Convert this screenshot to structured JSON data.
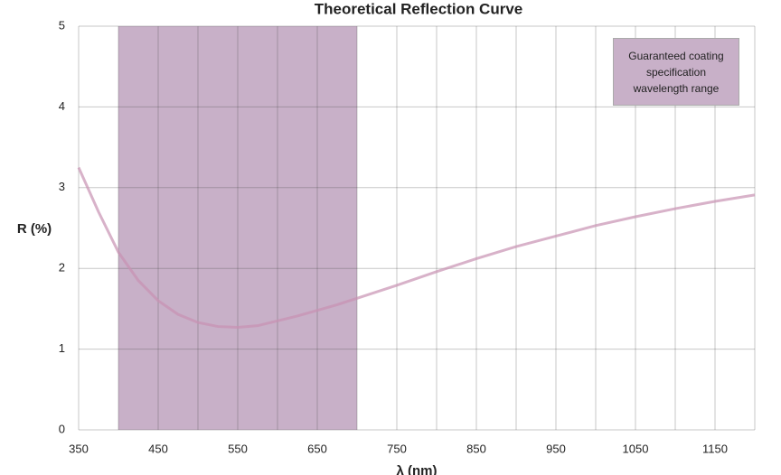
{
  "chart_data": {
    "type": "line",
    "title": "Theoretical Reflection Curve",
    "xlabel": "λ (nm)",
    "ylabel": "R (%)",
    "x": [
      350,
      375,
      400,
      425,
      450,
      475,
      500,
      525,
      550,
      575,
      600,
      625,
      650,
      675,
      700,
      750,
      800,
      850,
      900,
      950,
      1000,
      1050,
      1100,
      1150,
      1200
    ],
    "series": [
      {
        "name": "R",
        "color": "#c892b2",
        "values": [
          3.25,
          2.7,
          2.2,
          1.85,
          1.6,
          1.43,
          1.33,
          1.28,
          1.27,
          1.29,
          1.35,
          1.41,
          1.48,
          1.55,
          1.63,
          1.79,
          1.96,
          2.12,
          2.27,
          2.4,
          2.53,
          2.64,
          2.74,
          2.83,
          2.91
        ]
      }
    ],
    "xlim": [
      350,
      1200
    ],
    "xticks": [
      350,
      450,
      550,
      650,
      750,
      850,
      950,
      1050,
      1150
    ],
    "x_minor_ticks": [
      400,
      500,
      600,
      700,
      800,
      900,
      1000,
      1100,
      1200
    ],
    "ylim": [
      0,
      5
    ],
    "yticks": [
      0,
      1,
      2,
      3,
      4,
      5
    ],
    "grid": true,
    "band": {
      "label": "Guaranteed coating specification wavelength range",
      "range": [
        400,
        700
      ],
      "color": "#c8b0c8"
    }
  }
}
